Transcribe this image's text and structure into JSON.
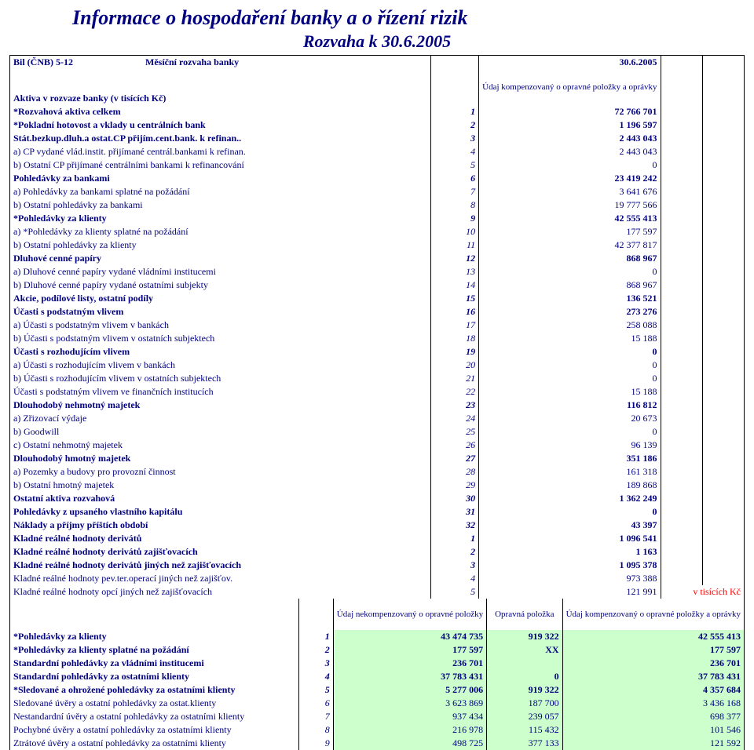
{
  "titles": {
    "main": "Informace o hospodaření banky a o řízení rizik",
    "sub": "Rozvaha k 30.6.2005"
  },
  "header": {
    "leftA": "Bil (ČNB) 5-12",
    "leftB": "Měsíční rozvaha banky",
    "right": "30.6.2005",
    "assets": "Aktiva v rozvaze banky (v tisících Kč)",
    "col": "Údaj kompenzovaný o opravné položky a oprávky"
  },
  "rows": [
    {
      "l": "*Rozvahová aktiva celkem",
      "i": "1",
      "v": "72 766 701",
      "b": true
    },
    {
      "l": "*Pokladní hotovost a vklady u centrálních bank",
      "i": "2",
      "v": "1 196 597",
      "b": true
    },
    {
      "l": "Stát.bezkup.dluh.a ostat.CP přijím.cent.bank. k refinan..",
      "i": "3",
      "v": "2 443 043",
      "b": true
    },
    {
      "l": "a) CP vydané vlád.instit. přijímané centrál.bankami k refinan.",
      "i": "4",
      "v": "2 443 043"
    },
    {
      "l": "b) Ostatní CP přijímané centrálními bankami k refinancování",
      "i": "5",
      "v": "0"
    },
    {
      "l": "Pohledávky za bankami",
      "i": "6",
      "v": "23 419 242",
      "b": true
    },
    {
      "l": "a) Pohledávky za bankami splatné na požádání",
      "i": "7",
      "v": "3 641 676"
    },
    {
      "l": "b) Ostatní pohledávky za bankami",
      "i": "8",
      "v": "19 777 566"
    },
    {
      "l": "*Pohledávky za klienty",
      "i": "9",
      "v": "42 555 413",
      "b": true
    },
    {
      "l": "a) *Pohledávky za klienty splatné na požádání",
      "i": "10",
      "v": "177 597"
    },
    {
      "l": "b) Ostatní pohledávky za klienty",
      "i": "11",
      "v": "42 377 817"
    },
    {
      "l": "Dluhové cenné papíry",
      "i": "12",
      "v": "868 967",
      "b": true
    },
    {
      "l": "a) Dluhové cenné papíry vydané vládními institucemi",
      "i": "13",
      "v": "0"
    },
    {
      "l": "b) Dluhové cenné papíry vydané ostatními subjekty",
      "i": "14",
      "v": "868 967"
    },
    {
      "l": "Akcie, podílové listy, ostatní podíly",
      "i": "15",
      "v": "136 521",
      "b": true
    },
    {
      "l": "Účasti s podstatným vlivem",
      "i": "16",
      "v": "273 276",
      "b": true
    },
    {
      "l": "a) Účasti s podstatným vlivem v bankách",
      "i": "17",
      "v": "258 088"
    },
    {
      "l": "b) Účasti s podstatným vlivem v ostatních subjektech",
      "i": "18",
      "v": "15 188"
    },
    {
      "l": "Účasti s rozhodujícím vlivem",
      "i": "19",
      "v": "0",
      "b": true
    },
    {
      "l": "a) Účasti s rozhodujícím vlivem v bankách",
      "i": "20",
      "v": "0"
    },
    {
      "l": "b) Účasti s rozhodujícím vlivem v ostatních subjektech",
      "i": "21",
      "v": "0"
    },
    {
      "l": "Účasti s podstatným vlivem ve finančních institucích",
      "i": "22",
      "v": "15 188"
    },
    {
      "l": "Dlouhodobý nehmotný majetek",
      "i": "23",
      "v": "116 812",
      "b": true
    },
    {
      "l": "a) Zřizovací výdaje",
      "i": "24",
      "v": "20 673"
    },
    {
      "l": "b) Goodwill",
      "i": "25",
      "v": "0"
    },
    {
      "l": "c) Ostatní nehmotný majetek",
      "i": "26",
      "v": "96 139"
    },
    {
      "l": "Dlouhodobý hmotný majetek",
      "i": "27",
      "v": "351 186",
      "b": true
    },
    {
      "l": "a) Pozemky a budovy pro provozní činnost",
      "i": "28",
      "v": "161 318"
    },
    {
      "l": "b) Ostatní hmotný majetek",
      "i": "29",
      "v": "189 868"
    },
    {
      "l": "Ostatní aktiva rozvahová",
      "i": "30",
      "v": "1 362 249",
      "b": true
    },
    {
      "l": "Pohledávky z upsaného vlastního kapitálu",
      "i": "31",
      "v": "0",
      "b": true
    },
    {
      "l": "Náklady a příjmy příštích období",
      "i": "32",
      "v": "43 397",
      "b": true
    },
    {
      "l": "Kladné reálné hodnoty derivátů",
      "i": "1",
      "v": "1 096 541",
      "b": true
    },
    {
      "l": "Kladné reálné hodnoty derivátů zajišťovacích",
      "i": "2",
      "v": "1 163",
      "b": true
    },
    {
      "l": "Kladné reálné hodnoty derivátů jiných než zajišťovacích",
      "i": "3",
      "v": "1 095 378",
      "b": true
    },
    {
      "l": "Kladné reálné hodnoty pev.ter.operací jiných než zajišťov.",
      "i": "4",
      "v": "973 388"
    },
    {
      "l": "Kladné reálné hodnoty opcí jiných než zajišťovacích",
      "i": "5",
      "v": "121 991"
    }
  ],
  "note": "v tisících Kč",
  "sub_header": {
    "c1": "Údaj nekompenzovaný o opravné položky",
    "c2": "Opravná položka",
    "c3": "Údaj kompenzovaný o opravné položky a oprávky"
  },
  "sub_rows": [
    {
      "l": "*Pohledávky za klienty",
      "i": "1",
      "v1": "43 474 735",
      "v2": "919 322",
      "v3": "42 555 413",
      "b": true
    },
    {
      "l": "*Pohledávky za klienty splatné na požádání",
      "i": "2",
      "v1": "177 597",
      "v2": "XX",
      "v3": "177 597",
      "b": true
    },
    {
      "l": "Standardní pohledávky za vládními institucemi",
      "i": "3",
      "v1": "236 701",
      "v2": "",
      "v3": "236 701",
      "b": true
    },
    {
      "l": "Standardní pohledávky za ostatními klienty",
      "i": "4",
      "v1": "37 783 431",
      "v2": "0",
      "v3": "37 783 431",
      "b": true
    },
    {
      "l": "*Sledované a ohrožené pohledávky za ostatními klienty",
      "i": "5",
      "v1": "5 277 006",
      "v2": "919 322",
      "v3": "4 357 684",
      "b": true
    },
    {
      "l": "Sledované úvěry a ostatní pohledávky za ostat.klienty",
      "i": "6",
      "v1": "3 623 869",
      "v2": "187 700",
      "v3": "3 436 168"
    },
    {
      "l": "Nestandardní úvěry a ostatní pohledávky za ostatními klienty",
      "i": "7",
      "v1": "937 434",
      "v2": "239 057",
      "v3": "698 377"
    },
    {
      "l": "Pochybné úvěry a ostatní pohledávky za ostatními klienty",
      "i": "8",
      "v1": "216 978",
      "v2": "115 432",
      "v3": "101 546"
    },
    {
      "l": "Ztrátové úvěry a ostatní pohledávky za ostatními klienty",
      "i": "9",
      "v1": "498 725",
      "v2": "377 133",
      "v3": "121 592"
    }
  ]
}
